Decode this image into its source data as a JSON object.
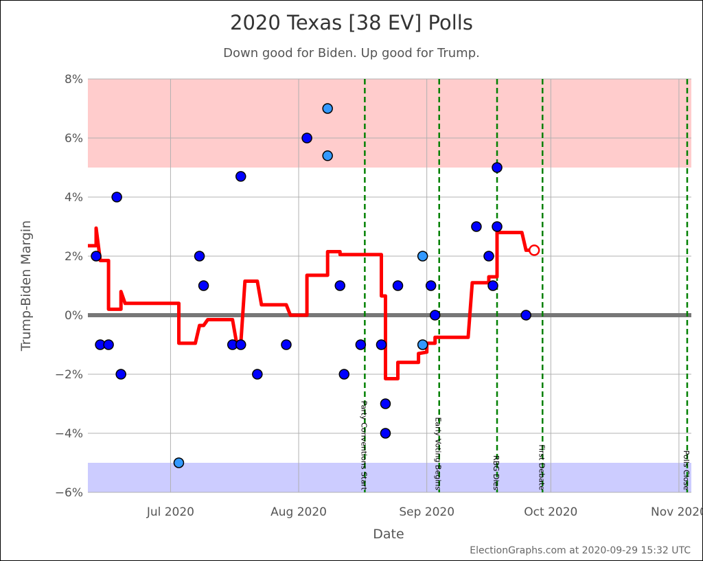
{
  "chart_data": {
    "type": "scatter",
    "title": "2020 Texas [38 EV] Polls",
    "subtitle": "Down good for Biden. Up good for Trump.",
    "xlabel": "Date",
    "ylabel": "Trump-Biden Margin",
    "credit": "ElectionGraphs.com at 2020-09-29 15:32 UTC",
    "x_range": [
      "2020-06-11",
      "2020-11-04"
    ],
    "ylim": [
      -6,
      8
    ],
    "y_ticks": [
      {
        "value": 8,
        "label": "8%"
      },
      {
        "value": 6,
        "label": "6%"
      },
      {
        "value": 4,
        "label": "4%"
      },
      {
        "value": 2,
        "label": "2%"
      },
      {
        "value": 0,
        "label": "0%"
      },
      {
        "value": -2,
        "label": "−2%"
      },
      {
        "value": -4,
        "label": "−4%"
      },
      {
        "value": -6,
        "label": "−6%"
      }
    ],
    "x_ticks": [
      {
        "date": "2020-07-01",
        "label": "Jul 2020"
      },
      {
        "date": "2020-08-01",
        "label": "Aug 2020"
      },
      {
        "date": "2020-09-01",
        "label": "Sep 2020"
      },
      {
        "date": "2020-10-01",
        "label": "Oct 2020"
      },
      {
        "date": "2020-11-01",
        "label": "Nov 2020"
      }
    ],
    "grid": true,
    "bands": [
      {
        "from": 5,
        "to": 8,
        "color": "#ffcccc"
      },
      {
        "from": -6,
        "to": -5,
        "color": "#ccccff"
      }
    ],
    "zero_line_color": "#777777",
    "events": [
      {
        "date": "2020-08-17",
        "label": "Party Conventions Start"
      },
      {
        "date": "2020-09-04",
        "label": "Early Voting Begins"
      },
      {
        "date": "2020-09-18",
        "label": "RBG Dies"
      },
      {
        "date": "2020-09-29",
        "label": "First Debate"
      },
      {
        "date": "2020-11-03",
        "label": "Polls Close"
      }
    ],
    "series": [
      {
        "kind": "polls",
        "color": "#0000ff",
        "points": [
          {
            "x": "2020-06-13",
            "y": 2
          },
          {
            "x": "2020-06-14",
            "y": -1
          },
          {
            "x": "2020-06-16",
            "y": -1
          },
          {
            "x": "2020-06-18",
            "y": 4
          },
          {
            "x": "2020-06-19",
            "y": -2
          },
          {
            "x": "2020-07-08",
            "y": 2
          },
          {
            "x": "2020-07-09",
            "y": 1
          },
          {
            "x": "2020-07-16",
            "y": -1
          },
          {
            "x": "2020-07-18",
            "y": 4.7
          },
          {
            "x": "2020-07-18",
            "y": -1
          },
          {
            "x": "2020-07-22",
            "y": -2
          },
          {
            "x": "2020-07-29",
            "y": -1
          },
          {
            "x": "2020-08-03",
            "y": 6
          },
          {
            "x": "2020-08-11",
            "y": 1
          },
          {
            "x": "2020-08-12",
            "y": -2
          },
          {
            "x": "2020-08-16",
            "y": -1
          },
          {
            "x": "2020-08-21",
            "y": -1
          },
          {
            "x": "2020-08-22",
            "y": -3
          },
          {
            "x": "2020-08-22",
            "y": -4
          },
          {
            "x": "2020-08-25",
            "y": 1
          },
          {
            "x": "2020-09-02",
            "y": 1
          },
          {
            "x": "2020-09-03",
            "y": 0
          },
          {
            "x": "2020-09-13",
            "y": 3
          },
          {
            "x": "2020-09-16",
            "y": 2
          },
          {
            "x": "2020-09-18",
            "y": 5
          },
          {
            "x": "2020-09-18",
            "y": 3
          },
          {
            "x": "2020-09-17",
            "y": 1
          },
          {
            "x": "2020-09-25",
            "y": 0
          }
        ]
      },
      {
        "kind": "polls",
        "color": "#3399ff",
        "points": [
          {
            "x": "2020-07-03",
            "y": -5
          },
          {
            "x": "2020-08-08",
            "y": 7
          },
          {
            "x": "2020-08-08",
            "y": 5.4
          },
          {
            "x": "2020-08-31",
            "y": 2
          },
          {
            "x": "2020-08-31",
            "y": -1
          }
        ]
      },
      {
        "kind": "average",
        "color": "#ff0000",
        "points": [
          {
            "x": "2020-06-11",
            "y": 2.35
          },
          {
            "x": "2020-06-13",
            "y": 2.35
          },
          {
            "x": "2020-06-13",
            "y": 2.95
          },
          {
            "x": "2020-06-14",
            "y": 1.85
          },
          {
            "x": "2020-06-16",
            "y": 1.85
          },
          {
            "x": "2020-06-16",
            "y": 0.2
          },
          {
            "x": "2020-06-19",
            "y": 0.2
          },
          {
            "x": "2020-06-19",
            "y": 0.8
          },
          {
            "x": "2020-06-20",
            "y": 0.4
          },
          {
            "x": "2020-07-03",
            "y": 0.4
          },
          {
            "x": "2020-07-03",
            "y": -0.95
          },
          {
            "x": "2020-07-07",
            "y": -0.95
          },
          {
            "x": "2020-07-08",
            "y": -0.35
          },
          {
            "x": "2020-07-09",
            "y": -0.35
          },
          {
            "x": "2020-07-10",
            "y": -0.15
          },
          {
            "x": "2020-07-16",
            "y": -0.15
          },
          {
            "x": "2020-07-17",
            "y": -0.95
          },
          {
            "x": "2020-07-18",
            "y": -0.95
          },
          {
            "x": "2020-07-19",
            "y": 1.15
          },
          {
            "x": "2020-07-22",
            "y": 1.15
          },
          {
            "x": "2020-07-23",
            "y": 0.35
          },
          {
            "x": "2020-07-29",
            "y": 0.35
          },
          {
            "x": "2020-07-30",
            "y": 0
          },
          {
            "x": "2020-08-03",
            "y": 0
          },
          {
            "x": "2020-08-03",
            "y": 1.35
          },
          {
            "x": "2020-08-08",
            "y": 1.35
          },
          {
            "x": "2020-08-08",
            "y": 2.15
          },
          {
            "x": "2020-08-11",
            "y": 2.15
          },
          {
            "x": "2020-08-11",
            "y": 2.05
          },
          {
            "x": "2020-08-21",
            "y": 2.05
          },
          {
            "x": "2020-08-21",
            "y": 0.65
          },
          {
            "x": "2020-08-22",
            "y": 0.65
          },
          {
            "x": "2020-08-22",
            "y": -2.15
          },
          {
            "x": "2020-08-25",
            "y": -2.15
          },
          {
            "x": "2020-08-25",
            "y": -1.6
          },
          {
            "x": "2020-08-30",
            "y": -1.6
          },
          {
            "x": "2020-08-30",
            "y": -1.3
          },
          {
            "x": "2020-09-01",
            "y": -1.25
          },
          {
            "x": "2020-09-01",
            "y": -0.95
          },
          {
            "x": "2020-09-03",
            "y": -0.95
          },
          {
            "x": "2020-09-03",
            "y": -0.75
          },
          {
            "x": "2020-09-11",
            "y": -0.75
          },
          {
            "x": "2020-09-12",
            "y": 1.1
          },
          {
            "x": "2020-09-16",
            "y": 1.1
          },
          {
            "x": "2020-09-16",
            "y": 1.3
          },
          {
            "x": "2020-09-18",
            "y": 1.3
          },
          {
            "x": "2020-09-18",
            "y": 2.8
          },
          {
            "x": "2020-09-24",
            "y": 2.8
          },
          {
            "x": "2020-09-25",
            "y": 2.2
          },
          {
            "x": "2020-09-27",
            "y": 2.2
          }
        ],
        "endpoint": {
          "x": "2020-09-27",
          "y": 2.2
        }
      }
    ]
  }
}
